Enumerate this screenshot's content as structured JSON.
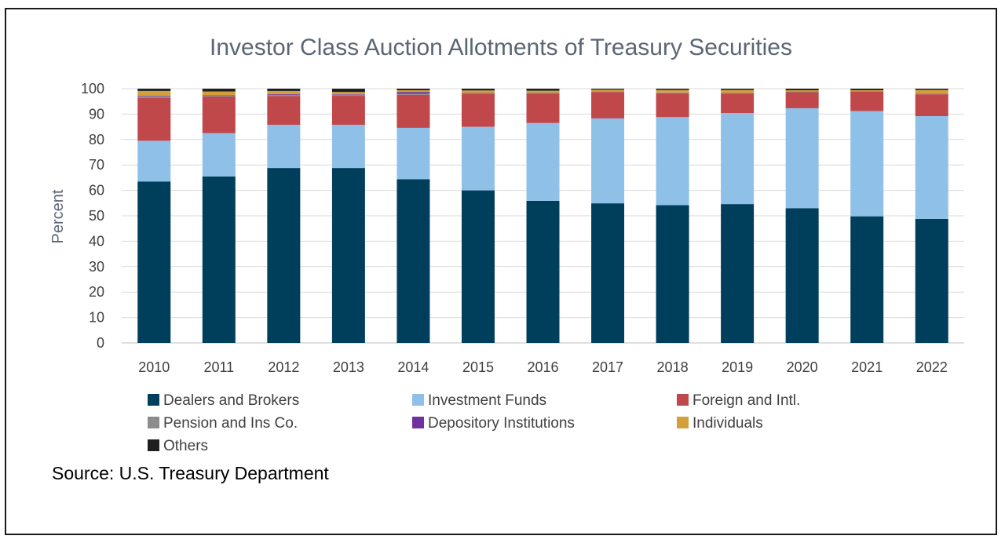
{
  "chart_data": {
    "type": "bar",
    "stacked": true,
    "title": "Investor Class Auction Allotments of Treasury Securities",
    "xlabel": "",
    "ylabel": "Percent",
    "ylim": [
      0,
      100
    ],
    "yticks": [
      0,
      10,
      20,
      30,
      40,
      50,
      60,
      70,
      80,
      90,
      100
    ],
    "categories": [
      "2010",
      "2011",
      "2012",
      "2013",
      "2014",
      "2015",
      "2016",
      "2017",
      "2018",
      "2019",
      "2020",
      "2021",
      "2022"
    ],
    "series": [
      {
        "name": "Dealers and Brokers",
        "color": "#003f5c",
        "values": [
          63.5,
          65.5,
          68.8,
          68.8,
          64.4,
          60.0,
          55.9,
          54.9,
          54.2,
          54.6,
          53.0,
          49.8,
          48.8
        ]
      },
      {
        "name": "Investment Funds",
        "color": "#8fc1e8",
        "values": [
          16.0,
          17.0,
          17.0,
          17.0,
          20.2,
          25.0,
          30.6,
          33.4,
          34.6,
          35.8,
          39.3,
          41.4,
          40.4
        ]
      },
      {
        "name": "Foreign and Intl.",
        "color": "#c0474a",
        "values": [
          16.9,
          14.4,
          11.3,
          11.4,
          13.0,
          13.1,
          11.5,
          10.4,
          9.4,
          7.6,
          6.3,
          7.6,
          8.6
        ]
      },
      {
        "name": "Pension and Ins Co.",
        "color": "#8c8c8c",
        "values": [
          0.6,
          0.4,
          0.4,
          0.4,
          0.4,
          0.2,
          0.3,
          0.2,
          0.2,
          0.2,
          0.2,
          0.2,
          0.2
        ]
      },
      {
        "name": "Depository Institutions",
        "color": "#7030a0",
        "values": [
          0.2,
          0.2,
          0.3,
          0.2,
          0.7,
          0.1,
          0.1,
          0.1,
          0.1,
          0.1,
          0.1,
          0.1,
          0.1
        ]
      },
      {
        "name": "Individuals",
        "color": "#d4a03a",
        "values": [
          1.9,
          1.4,
          1.3,
          0.9,
          0.7,
          0.9,
          0.8,
          0.6,
          1.0,
          1.2,
          0.5,
          0.3,
          1.4
        ]
      },
      {
        "name": "Others",
        "color": "#1f1f1f",
        "values": [
          0.9,
          1.1,
          0.9,
          1.3,
          0.6,
          0.7,
          0.8,
          0.4,
          0.5,
          0.5,
          0.6,
          0.6,
          0.5
        ]
      }
    ],
    "legend_position": "bottom",
    "source": "Source: U.S. Treasury Department"
  }
}
